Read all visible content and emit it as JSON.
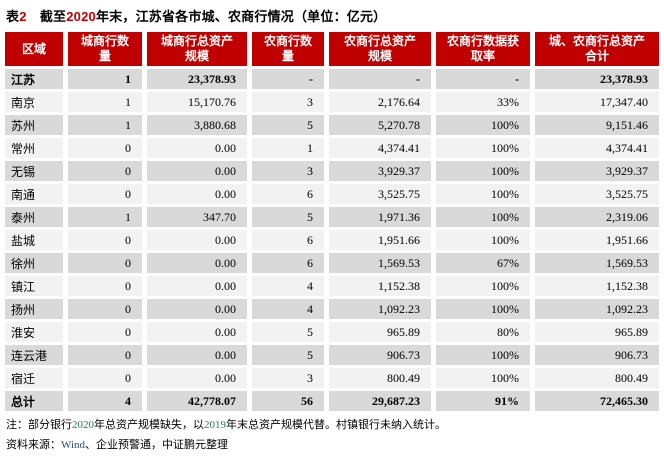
{
  "title": {
    "segments": [
      {
        "text": "表",
        "color": "#000000"
      },
      {
        "text": "2",
        "color": "#C00000"
      },
      {
        "text": "　截至",
        "color": "#000000"
      },
      {
        "text": "2020",
        "color": "#C00000"
      },
      {
        "text": "年末，江苏省各市城、农商行情况（单位：亿元）",
        "color": "#000000"
      }
    ]
  },
  "table": {
    "columns": [
      [
        "区域"
      ],
      [
        "城商行数",
        "量"
      ],
      [
        "城商行总资产",
        "规模"
      ],
      [
        "农商行数",
        "量"
      ],
      [
        "农商行总资产",
        "规模"
      ],
      [
        "农商行数据获",
        "取率"
      ],
      [
        "城、农商行总资产",
        "合计"
      ]
    ],
    "rows": [
      {
        "region": "江苏",
        "bold": true,
        "values": [
          "1",
          "23,378.93",
          "-",
          "-",
          "-",
          "23,378.93"
        ]
      },
      {
        "region": "南京",
        "bold": false,
        "values": [
          "1",
          "15,170.76",
          "3",
          "2,176.64",
          "33%",
          "17,347.40"
        ]
      },
      {
        "region": "苏州",
        "bold": false,
        "values": [
          "1",
          "3,880.68",
          "5",
          "5,270.78",
          "100%",
          "9,151.46"
        ]
      },
      {
        "region": "常州",
        "bold": false,
        "values": [
          "0",
          "0.00",
          "1",
          "4,374.41",
          "100%",
          "4,374.41"
        ]
      },
      {
        "region": "无锡",
        "bold": false,
        "values": [
          "0",
          "0.00",
          "3",
          "3,929.37",
          "100%",
          "3,929.37"
        ]
      },
      {
        "region": "南通",
        "bold": false,
        "values": [
          "0",
          "0.00",
          "6",
          "3,525.75",
          "100%",
          "3,525.75"
        ]
      },
      {
        "region": "泰州",
        "bold": false,
        "values": [
          "1",
          "347.70",
          "5",
          "1,971.36",
          "100%",
          "2,319.06"
        ]
      },
      {
        "region": "盐城",
        "bold": false,
        "values": [
          "0",
          "0.00",
          "6",
          "1,951.66",
          "100%",
          "1,951.66"
        ]
      },
      {
        "region": "徐州",
        "bold": false,
        "values": [
          "0",
          "0.00",
          "6",
          "1,569.53",
          "67%",
          "1,569.53"
        ]
      },
      {
        "region": "镇江",
        "bold": false,
        "values": [
          "0",
          "0.00",
          "4",
          "1,152.38",
          "100%",
          "1,152.38"
        ]
      },
      {
        "region": "扬州",
        "bold": false,
        "values": [
          "0",
          "0.00",
          "4",
          "1,092.23",
          "100%",
          "1,092.23"
        ]
      },
      {
        "region": "淮安",
        "bold": false,
        "values": [
          "0",
          "0.00",
          "5",
          "965.89",
          "80%",
          "965.89"
        ]
      },
      {
        "region": "连云港",
        "bold": false,
        "values": [
          "0",
          "0.00",
          "5",
          "906.73",
          "100%",
          "906.73"
        ]
      },
      {
        "region": "宿迁",
        "bold": false,
        "values": [
          "0",
          "0.00",
          "3",
          "800.49",
          "100%",
          "800.49"
        ]
      },
      {
        "region": "总计",
        "bold": true,
        "values": [
          "4",
          "42,778.07",
          "56",
          "29,687.23",
          "91%",
          "72,465.30"
        ]
      }
    ]
  },
  "notes": {
    "footnote_segments": [
      {
        "text": "注：部分银行",
        "color": "#000000"
      },
      {
        "text": "2020",
        "color": "#2E7568"
      },
      {
        "text": "年总资产规模缺失，以",
        "color": "#000000"
      },
      {
        "text": "2019",
        "color": "#2E7568"
      },
      {
        "text": "年末总资产规模代替。村镇银行未纳入统计。",
        "color": "#000000"
      }
    ],
    "source_segments": [
      {
        "text": "资料来源：",
        "color": "#000000"
      },
      {
        "text": "Wind",
        "color": "#1F4E79"
      },
      {
        "text": "、企业预警通，中证鹏元整理",
        "color": "#000000"
      }
    ]
  },
  "colors": {
    "header_bg": "#C00000",
    "row_dark": "#D9D9D9",
    "row_light": "#F2F2F2",
    "title_number_red": "#C00000",
    "note_number_teal": "#2E7568",
    "source_link_blue": "#1F4E79"
  }
}
